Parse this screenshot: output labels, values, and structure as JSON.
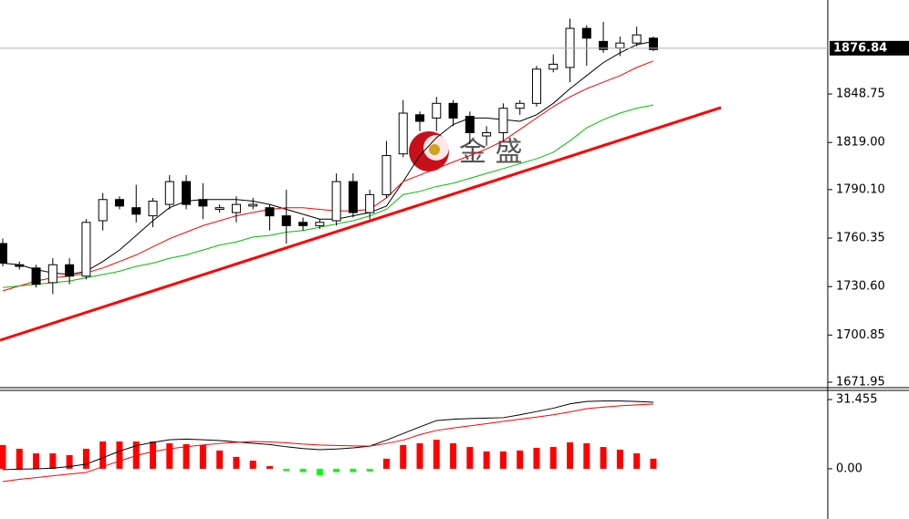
{
  "chart_data": [
    {
      "type": "candlestick",
      "open": [
        1757,
        1744,
        1742,
        1733,
        1744,
        1737,
        1771,
        1784,
        1779,
        1774,
        1781,
        1795,
        1784,
        1778,
        1776,
        1780,
        1779,
        1774,
        1770,
        1768,
        1771,
        1795,
        1776,
        1787,
        1812,
        1836,
        1834,
        1843,
        1835,
        1823,
        1825,
        1840,
        1843,
        1864,
        1865,
        1889,
        1881,
        1877,
        1880,
        1883
      ],
      "high": [
        1760,
        1746,
        1744,
        1748,
        1748,
        1772,
        1788,
        1786,
        1793,
        1785,
        1799,
        1799,
        1794,
        1781,
        1786,
        1785,
        1781,
        1790,
        1773,
        1772,
        1800,
        1800,
        1790,
        1820,
        1845,
        1838,
        1847,
        1845,
        1838,
        1829,
        1843,
        1845,
        1866,
        1873,
        1895,
        1891,
        1893,
        1884,
        1890,
        1884
      ],
      "low": [
        1743,
        1741,
        1730,
        1726,
        1732,
        1735,
        1765,
        1778,
        1770,
        1767,
        1778,
        1778,
        1772,
        1776,
        1770,
        1778,
        1765,
        1757,
        1765,
        1766,
        1768,
        1773,
        1772,
        1785,
        1810,
        1826,
        1826,
        1829,
        1818,
        1817,
        1820,
        1836,
        1841,
        1862,
        1856,
        1866,
        1874,
        1872,
        1878,
        1875
      ],
      "close": [
        1745,
        1743,
        1732,
        1744,
        1737,
        1770,
        1784,
        1780,
        1775,
        1783,
        1795,
        1781,
        1780,
        1779,
        1781,
        1781,
        1774,
        1768,
        1768,
        1770,
        1795,
        1776,
        1787,
        1811,
        1837,
        1832,
        1843,
        1834,
        1825,
        1825,
        1840,
        1843,
        1864,
        1867,
        1889,
        1883,
        1876,
        1880,
        1885,
        1876
      ],
      "up_color": "#ffffff",
      "down_color": "#000000",
      "overlays": [
        {
          "color": "#000000",
          "values": [
            1745,
            1744,
            1741,
            1739,
            1738,
            1740,
            1746,
            1753,
            1762,
            1771,
            1779,
            1783,
            1784,
            1784,
            1784,
            1783,
            1781,
            1778,
            1775,
            1772,
            1772,
            1774,
            1776,
            1780,
            1795,
            1811,
            1822,
            1830,
            1834,
            1834,
            1833,
            1832,
            1836,
            1843,
            1852,
            1860,
            1868,
            1874,
            1879,
            1881
          ]
        },
        {
          "color": "#ff0000",
          "values": [
            1728,
            1731,
            1734,
            1736,
            1737,
            1739,
            1742,
            1746,
            1750,
            1755,
            1760,
            1764,
            1768,
            1771,
            1774,
            1776,
            1778,
            1779,
            1779,
            1778,
            1777,
            1777,
            1778,
            1785,
            1795,
            1799,
            1803,
            1807,
            1811,
            1815,
            1820,
            1827,
            1834,
            1841,
            1847,
            1852,
            1856,
            1860,
            1865,
            1869
          ]
        },
        {
          "color": "#00c000",
          "values": [
            1730,
            1731,
            1732,
            1733,
            1734,
            1736,
            1738,
            1740,
            1743,
            1745,
            1748,
            1750,
            1753,
            1756,
            1758,
            1761,
            1762,
            1764,
            1765,
            1767,
            1769,
            1771,
            1774,
            1778,
            1787,
            1789,
            1792,
            1794,
            1797,
            1800,
            1803,
            1806,
            1809,
            1813,
            1820,
            1828,
            1833,
            1837,
            1840,
            1842
          ]
        }
      ],
      "trendline": {
        "x": [
          -0.16,
          43.05
        ],
        "y": [
          1697.7,
          1840.4
        ],
        "color": "#ff0000"
      },
      "last_price": 1876.84,
      "ylim": [
        1668.6,
        1906.4
      ],
      "yticks": [
        1671.95,
        1700.85,
        {
          "value": 1730.6,
          "label": "1730.60"
        },
        1760.35,
        {
          "value": 1790.1,
          "label": "1790.10"
        },
        {
          "value": 1819,
          "label": "1819.00"
        },
        1848.75
      ]
    },
    {
      "type": "macd",
      "values": [
        10.8,
        9.1,
        7.0,
        7.0,
        6.2,
        9.1,
        12.4,
        12.4,
        12.4,
        12.4,
        11.6,
        11.2,
        10.8,
        8.3,
        5.4,
        3.7,
        1.2,
        -1,
        -1.5,
        -3,
        -1.5,
        -1.5,
        -1.2,
        4.6,
        10.8,
        11.6,
        13.2,
        11.6,
        9.9,
        7.9,
        7.9,
        8.3,
        9.5,
        9.9,
        12.0,
        11.6,
        9.9,
        8.7,
        7.0,
        4.6
      ],
      "up_color": "#ff0000",
      "down_color": "#00ff00",
      "lines": [
        {
          "color": "#000000",
          "values": [
            -0.4,
            -0.2,
            0,
            0.3,
            1,
            2.1,
            5,
            8,
            10.5,
            12,
            13.2,
            13.5,
            13.2,
            12.8,
            12.2,
            11.6,
            11,
            10,
            9.2,
            8.7,
            9,
            9.5,
            10.3,
            13,
            16,
            19,
            21.9,
            22.5,
            22.8,
            23,
            23.2,
            24.5,
            26,
            27.5,
            29.5,
            30.6,
            30.8,
            30.8,
            30.6,
            30.2
          ]
        },
        {
          "color": "#ff0000",
          "values": [
            -5.8,
            -4.8,
            -4,
            -3.2,
            -2.4,
            -1.7,
            1,
            3.5,
            6,
            7.8,
            9.1,
            10,
            10.8,
            11.5,
            12,
            12.4,
            12.2,
            11.8,
            11.2,
            10.8,
            10.6,
            10.4,
            10.3,
            11.5,
            13,
            15.5,
            17.4,
            18.5,
            19.5,
            20.5,
            21.5,
            22.5,
            23.5,
            24.5,
            25.8,
            27.3,
            28,
            28.6,
            29,
            29.4
          ]
        }
      ],
      "ylim": [
        -22.8,
        35.6
      ],
      "yticks": [
        {
          "value": 0,
          "label": "0.00"
        },
        31.455
      ]
    }
  ],
  "watermark": "金 盛"
}
